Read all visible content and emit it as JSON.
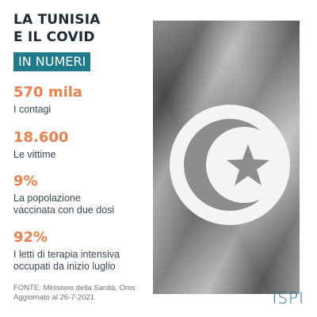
{
  "header": {
    "title_line1": "LA TUNISIA",
    "title_line2": "E IL COVID",
    "subtitle": "IN NUMERI"
  },
  "stats": [
    {
      "value": "570 mila",
      "label_lines": [
        "I contagi"
      ]
    },
    {
      "value": "18.600",
      "label_lines": [
        "Le vittime"
      ]
    },
    {
      "value": "9%",
      "label_lines": [
        "La popolazione",
        "vaccinata con due dosi"
      ]
    },
    {
      "value": "92%",
      "label_lines": [
        "I letti di terapia intensiva",
        "occupati da inizio luglio"
      ]
    }
  ],
  "footer": {
    "source": "FONTE: Ministero della Sanità, Oms",
    "updated": "Aggiornato al 26-7-2021"
  },
  "logo": "ISPI",
  "colors": {
    "accent_orange": "#f07f4b",
    "accent_teal": "#1f7a8c",
    "title_dark": "#1f2a36"
  },
  "image": "tunisia-flag-grayscale"
}
